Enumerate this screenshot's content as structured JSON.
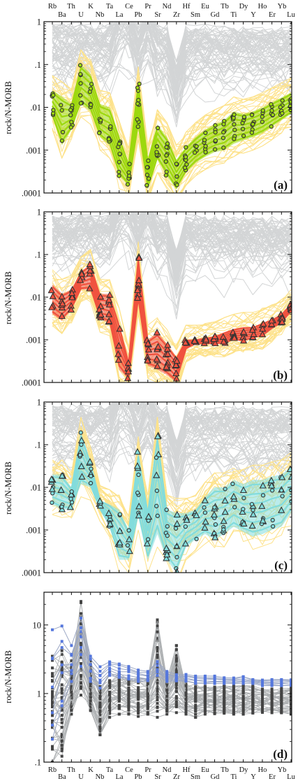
{
  "elements_top": [
    "Rb",
    "Th",
    "K",
    "Ta",
    "Ce",
    "Pr",
    "Nd",
    "Hf",
    "Eu",
    "Tb",
    "Dy",
    "Ho",
    "Yb"
  ],
  "elements_bottom": [
    "Ba",
    "U",
    "Nb",
    "La",
    "Pb",
    "Sr",
    "Zr",
    "Sm",
    "Gd",
    "Ti",
    "Y",
    "Er",
    "Lu"
  ],
  "colors": {
    "background_lines": "#d3d5d6",
    "yellow_lines": "#fde28a",
    "panel_a": "#9dd80f",
    "panel_b": "#f0523f",
    "panel_c": "#82dcdc",
    "panel_d_blue": "#5577dd",
    "panel_d_dark": "#444444",
    "marker_edge": "#333333"
  },
  "chart_data": [
    {
      "type": "line",
      "panel": "(a)",
      "ylabel": "rock/N-MORB",
      "yscale": "log",
      "ylim": [
        0.0001,
        1
      ],
      "yticks": [
        "1",
        ".1",
        ".01",
        ".001",
        ".0001"
      ],
      "x": [
        "Rb",
        "Ba",
        "Th",
        "U",
        "K",
        "Nb",
        "Ta",
        "La",
        "Ce",
        "Pb",
        "Pr",
        "Sr",
        "Nd",
        "Zr",
        "Hf",
        "Sm",
        "Eu",
        "Gd",
        "Tb",
        "Ti",
        "Dy",
        "Y",
        "Ho",
        "Er",
        "Yb",
        "Lu"
      ],
      "highlight_marker": "circle",
      "highlight_upper": [
        0.025,
        0.018,
        0.012,
        0.1,
        0.06,
        0.012,
        0.01,
        0.0022,
        0.0005,
        0.04,
        0.0006,
        0.004,
        0.002,
        0.0006,
        0.0012,
        0.002,
        0.003,
        0.004,
        0.005,
        0.008,
        0.007,
        0.008,
        0.01,
        0.013,
        0.017,
        0.022
      ],
      "highlight_lower": [
        0.006,
        0.0013,
        0.003,
        0.012,
        0.008,
        0.002,
        0.0013,
        0.00025,
        0.00015,
        0.0035,
        0.00012,
        0.0006,
        0.00025,
        0.00012,
        0.0003,
        0.0005,
        0.0007,
        0.0009,
        0.001,
        0.0014,
        0.0017,
        0.002,
        0.0025,
        0.0035,
        0.005,
        0.007
      ]
    },
    {
      "type": "line",
      "panel": "(b)",
      "ylabel": "rock/N-MORB",
      "yscale": "log",
      "ylim": [
        0.0001,
        1
      ],
      "yticks": [
        "1",
        ".1",
        ".01",
        ".001",
        ".0001"
      ],
      "x": [
        "Rb",
        "Ba",
        "Th",
        "U",
        "K",
        "Nb",
        "Ta",
        "La",
        "Ce",
        "Pb",
        "Pr",
        "Sr",
        "Nd",
        "Zr",
        "Hf",
        "Sm",
        "Eu",
        "Gd",
        "Tb",
        "Ti",
        "Dy",
        "Y",
        "Ho",
        "Er",
        "Yb",
        "Lu"
      ],
      "highlight_marker": "triangle",
      "highlight_upper": [
        0.02,
        0.012,
        0.015,
        0.04,
        0.06,
        0.012,
        0.012,
        0.0025,
        0.0003,
        0.09,
        0.001,
        0.0015,
        0.0008,
        0.0004,
        0.001,
        0.001,
        0.0011,
        0.0012,
        0.0015,
        0.0018,
        0.002,
        0.002,
        0.0025,
        0.003,
        0.004,
        0.007
      ],
      "highlight_lower": [
        0.004,
        0.0028,
        0.005,
        0.015,
        0.015,
        0.003,
        0.0025,
        0.0002,
        0.00012,
        0.008,
        0.00025,
        0.0002,
        0.00015,
        0.0001,
        0.0006,
        0.0008,
        0.0008,
        0.0008,
        0.0008,
        0.001,
        0.0009,
        0.0011,
        0.0012,
        0.0018,
        0.0025,
        0.0045
      ]
    },
    {
      "type": "line",
      "panel": "(c)",
      "ylabel": "rock/N-MORB",
      "yscale": "log",
      "ylim": [
        0.0001,
        1
      ],
      "yticks": [
        "1",
        ".1",
        ".01",
        ".001",
        ".0001"
      ],
      "x": [
        "Rb",
        "Ba",
        "Th",
        "U",
        "K",
        "Nb",
        "Ta",
        "La",
        "Ce",
        "Pb",
        "Pr",
        "Sr",
        "Nd",
        "Zr",
        "Hf",
        "Sm",
        "Eu",
        "Gd",
        "Tb",
        "Ti",
        "Dy",
        "Y",
        "Ho",
        "Er",
        "Yb",
        "Lu"
      ],
      "highlight_marker": "triangle+circle",
      "highlight_upper": [
        0.02,
        0.02,
        0.01,
        0.2,
        0.04,
        0.005,
        0.004,
        0.003,
        0.001,
        0.07,
        0.003,
        0.2,
        0.003,
        0.0025,
        0.0025,
        0.003,
        0.006,
        0.01,
        0.01,
        0.015,
        0.012,
        0.015,
        0.015,
        0.018,
        0.02,
        0.03
      ],
      "highlight_lower": [
        0.004,
        0.003,
        0.003,
        0.012,
        0.01,
        0.003,
        0.0012,
        0.0002,
        0.0002,
        0.002,
        0.0002,
        0.0008,
        0.0002,
        0.0001,
        0.0004,
        0.0006,
        0.0008,
        0.0006,
        0.0008,
        0.0012,
        0.0009,
        0.0007,
        0.0008,
        0.001,
        0.0012,
        0.0025
      ]
    },
    {
      "type": "line",
      "panel": "(d)",
      "ylabel": "rock/N-MORB",
      "yscale": "log",
      "ylim": [
        0.1,
        30
      ],
      "yticks": [
        "10",
        "1",
        ".1"
      ],
      "x": [
        "Rb",
        "Ba",
        "Th",
        "U",
        "K",
        "Nb",
        "Ta",
        "La",
        "Ce",
        "Pb",
        "Pr",
        "Sr",
        "Nd",
        "Zr",
        "Hf",
        "Sm",
        "Eu",
        "Gd",
        "Tb",
        "Ti",
        "Dy",
        "Y",
        "Ho",
        "Er",
        "Yb",
        "Lu"
      ],
      "blue_series_upper": [
        8.5,
        10,
        5,
        14,
        3.5,
        2.5,
        3,
        2.7,
        2.5,
        2.2,
        2.1,
        3,
        2.1,
        1.9,
        1.9,
        1.8,
        1.8,
        1.8,
        1.7,
        1.7,
        1.8,
        1.6,
        1.6,
        1.6,
        1.6,
        1.6
      ],
      "blue_series_lower": [
        0.2,
        0.6,
        1.5,
        2.5,
        1.5,
        1.2,
        1.8,
        1.7,
        1.6,
        1.5,
        1.5,
        1.8,
        1.5,
        1.5,
        1.5,
        1.4,
        1.4,
        1.4,
        1.4,
        1.4,
        1.4,
        1.4,
        1.3,
        1.3,
        1.3,
        1.3
      ],
      "dark_series_upper": [
        3.5,
        5,
        3,
        22,
        3,
        1.3,
        2,
        2,
        1.8,
        1.7,
        1.6,
        12,
        1.6,
        5,
        1.4,
        1.4,
        1.3,
        1.3,
        1.3,
        1.3,
        1.3,
        1.3,
        1.2,
        1.2,
        1.2,
        1.2
      ],
      "dark_series_lower": [
        0.1,
        0.1,
        0.5,
        0.8,
        0.45,
        0.25,
        0.45,
        0.5,
        0.5,
        0.45,
        0.5,
        0.45,
        0.5,
        0.45,
        0.5,
        0.45,
        0.5,
        0.5,
        0.5,
        0.5,
        0.5,
        0.5,
        0.5,
        0.5,
        0.5,
        0.5
      ]
    }
  ]
}
